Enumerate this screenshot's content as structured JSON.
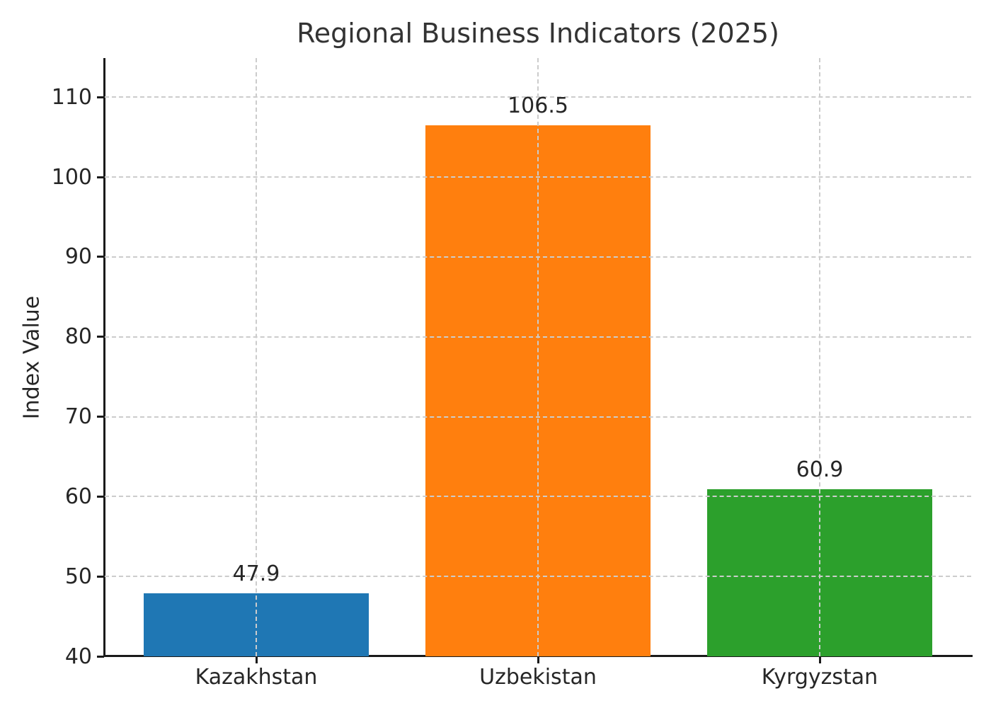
{
  "chart_data": {
    "type": "bar",
    "title": "Regional Business Indicators (2025)",
    "xlabel": "",
    "ylabel": "Index Value",
    "categories": [
      "Kazakhstan",
      "Uzbekistan",
      "Kyrgyzstan"
    ],
    "values": [
      47.9,
      106.5,
      60.9
    ],
    "value_labels": [
      "47.9",
      "106.5",
      "60.9"
    ],
    "bar_colors": [
      "#1f77b4",
      "#ff7f0e",
      "#2ca02c"
    ],
    "yticks": [
      40,
      50,
      60,
      70,
      80,
      90,
      100,
      110
    ],
    "ylim": [
      40,
      114.9
    ],
    "grid": "dashed horizontal and vertical, drawn above bars",
    "grid_color": "#cccccc",
    "legend_position": "none",
    "text_color": "#262626",
    "axis_color": "#1a1a1a",
    "background_color": "#ffffff"
  }
}
